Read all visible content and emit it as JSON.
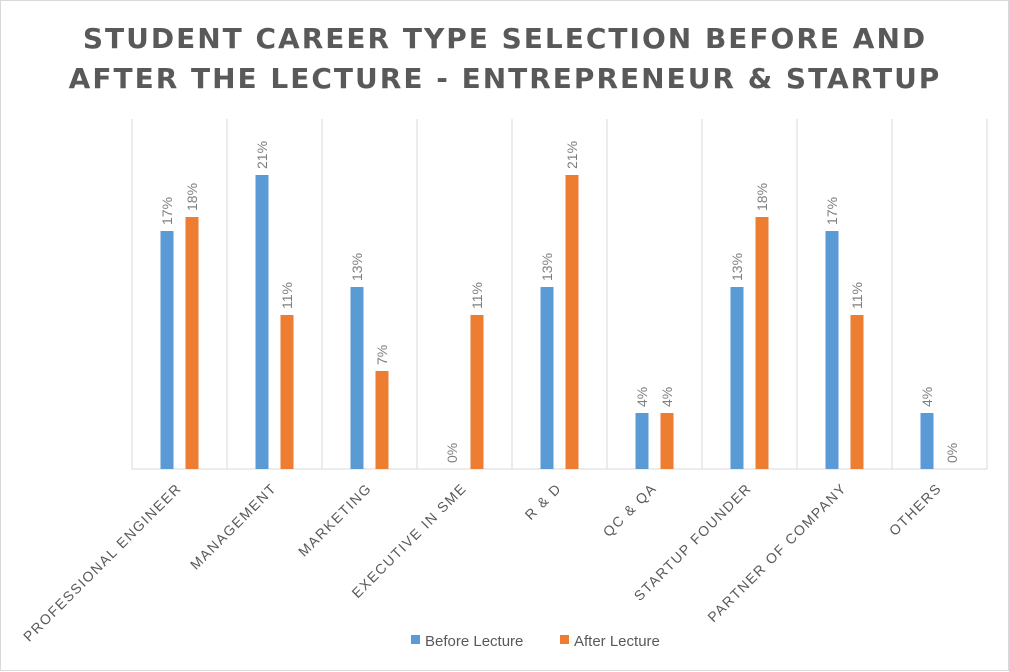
{
  "chart_data": {
    "type": "bar",
    "title": [
      "STUDENT CAREER TYPE SELECTION BEFORE AND",
      "AFTER THE LECTURE - ENTREPRENEUR & STARTUP"
    ],
    "categories": [
      "PROFESSIONAL ENGINEER",
      "MANAGEMENT",
      "MARKETING",
      "EXECUTIVE IN SME",
      "R & D",
      "QC & QA",
      "STARTUP FOUNDER",
      "PARTNER OF COMPANY",
      "OTHERS"
    ],
    "series": [
      {
        "name": "Before Lecture",
        "color": "#5b9bd5",
        "values": [
          17,
          21,
          13,
          0,
          13,
          4,
          13,
          17,
          4
        ]
      },
      {
        "name": "After Lecture",
        "color": "#ed7d31",
        "values": [
          18,
          11,
          7,
          11,
          21,
          4,
          18,
          11,
          0
        ]
      }
    ],
    "value_suffix": "%",
    "ylim": [
      0,
      25
    ],
    "grid": "vertical category separators",
    "legend": "bottom-center"
  }
}
